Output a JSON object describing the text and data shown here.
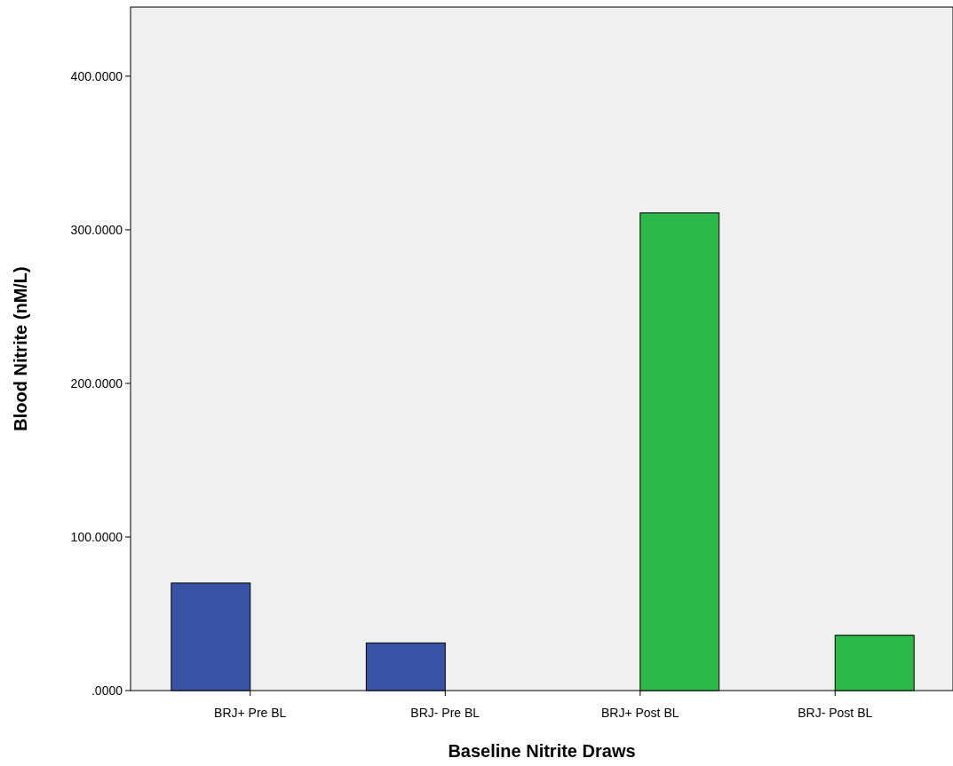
{
  "chart_data": {
    "type": "bar",
    "xlabel": "Baseline Nitrite Draws",
    "ylabel": "Blood Nitrite (nM/L)",
    "categories": [
      "BRJ+ Pre BL",
      "BRJ- Pre BL",
      "BRJ+ Post BL",
      "BRJ- Post BL"
    ],
    "series": [
      {
        "color": "#3953a4",
        "values": [
          70,
          31,
          null,
          null
        ]
      },
      {
        "color": "#2db84a",
        "values": [
          null,
          null,
          311,
          36
        ]
      }
    ],
    "ylim": [
      0,
      445
    ],
    "yticks": [
      {
        "value": 0,
        "label": ".0000"
      },
      {
        "value": 100,
        "label": "100.0000"
      },
      {
        "value": 200,
        "label": "200.0000"
      },
      {
        "value": 300,
        "label": "300.0000"
      },
      {
        "value": 400,
        "label": "400.0000"
      }
    ],
    "grid": false
  }
}
